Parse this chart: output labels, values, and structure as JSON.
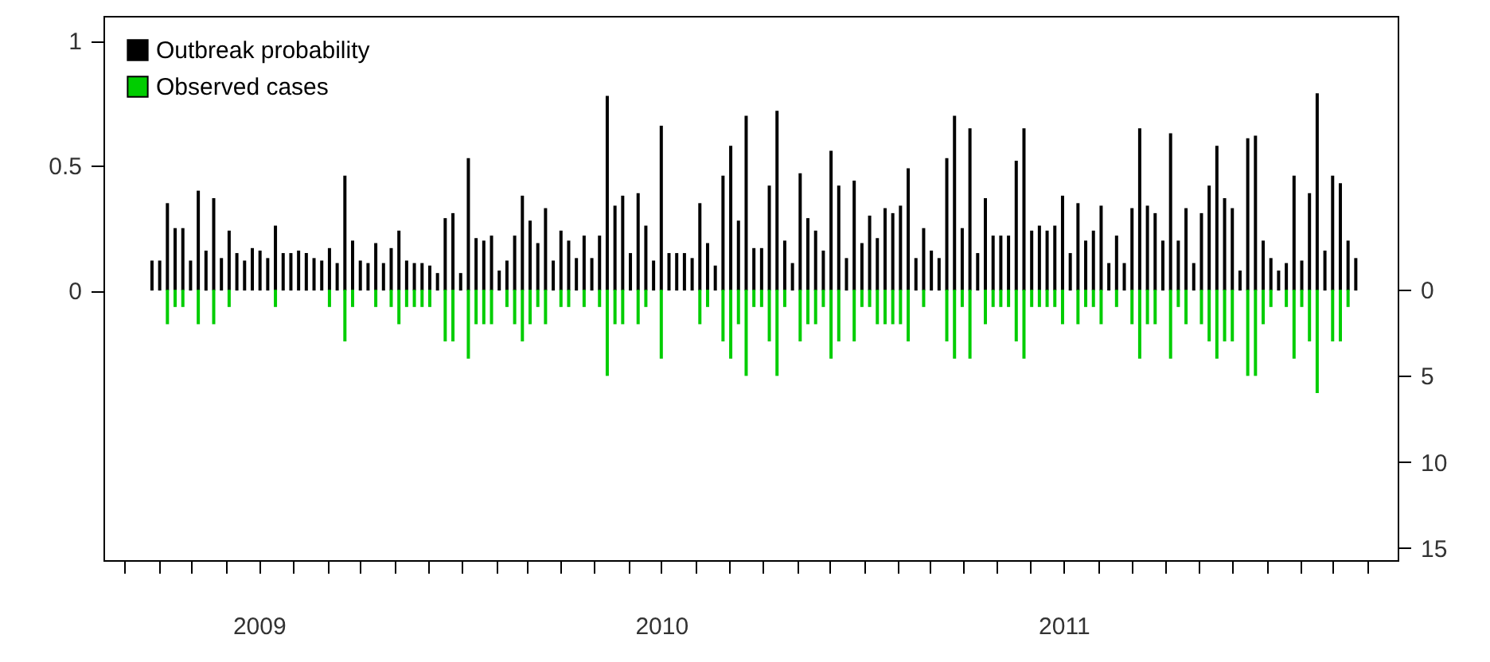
{
  "chart_data": {
    "type": "bar",
    "x": [
      "2009-03-26",
      "2009-04-02",
      "2009-04-09",
      "2009-04-16",
      "2009-04-23",
      "2009-04-30",
      "2009-05-07",
      "2009-05-14",
      "2009-05-21",
      "2009-05-28",
      "2009-06-04",
      "2009-06-11",
      "2009-06-18",
      "2009-06-25",
      "2009-07-02",
      "2009-07-09",
      "2009-07-16",
      "2009-07-23",
      "2009-07-30",
      "2009-08-06",
      "2009-08-13",
      "2009-08-20",
      "2009-08-27",
      "2009-09-03",
      "2009-09-10",
      "2009-09-17",
      "2009-09-24",
      "2009-10-01",
      "2009-10-08",
      "2009-10-15",
      "2009-10-22",
      "2009-10-29",
      "2009-11-05",
      "2009-11-12",
      "2009-11-19",
      "2009-11-26",
      "2009-12-03",
      "2009-12-10",
      "2009-12-17",
      "2009-12-24",
      "2009-12-31",
      "2010-01-07",
      "2010-01-14",
      "2010-01-21",
      "2010-01-28",
      "2010-02-04",
      "2010-02-11",
      "2010-02-18",
      "2010-02-25",
      "2010-03-04",
      "2010-03-11",
      "2010-03-18",
      "2010-03-25",
      "2010-04-01",
      "2010-04-08",
      "2010-04-15",
      "2010-04-22",
      "2010-04-29",
      "2010-05-06",
      "2010-05-13",
      "2010-05-20",
      "2010-05-27",
      "2010-06-03",
      "2010-06-10",
      "2010-06-17",
      "2010-06-24",
      "2010-07-01",
      "2010-07-08",
      "2010-07-15",
      "2010-07-22",
      "2010-07-29",
      "2010-08-05",
      "2010-08-12",
      "2010-08-19",
      "2010-08-26",
      "2010-09-02",
      "2010-09-09",
      "2010-09-16",
      "2010-09-23",
      "2010-09-30",
      "2010-10-07",
      "2010-10-14",
      "2010-10-21",
      "2010-10-28",
      "2010-11-04",
      "2010-11-11",
      "2010-11-18",
      "2010-11-25",
      "2010-12-02",
      "2010-12-09",
      "2010-12-16",
      "2010-12-23",
      "2010-12-30",
      "2011-01-06",
      "2011-01-13",
      "2011-01-20",
      "2011-01-27",
      "2011-02-03",
      "2011-02-10",
      "2011-02-17",
      "2011-02-24",
      "2011-03-03",
      "2011-03-10",
      "2011-03-17",
      "2011-03-24",
      "2011-03-31",
      "2011-04-07",
      "2011-04-14",
      "2011-04-21",
      "2011-04-28",
      "2011-05-05",
      "2011-05-12",
      "2011-05-19",
      "2011-05-26",
      "2011-06-02",
      "2011-06-09",
      "2011-06-16",
      "2011-06-23",
      "2011-06-30",
      "2011-07-07",
      "2011-07-14",
      "2011-07-21",
      "2011-07-28",
      "2011-08-04",
      "2011-08-11",
      "2011-08-18",
      "2011-08-25",
      "2011-09-01",
      "2011-09-08",
      "2011-09-15",
      "2011-09-22",
      "2011-09-29",
      "2011-10-06",
      "2011-10-13",
      "2011-10-20",
      "2011-10-27",
      "2011-11-03",
      "2011-11-10",
      "2011-11-17",
      "2011-11-24",
      "2011-12-01",
      "2011-12-08",
      "2011-12-15",
      "2011-12-22",
      "2011-12-29",
      "2012-01-05",
      "2012-01-12",
      "2012-01-19",
      "2012-01-26",
      "2012-02-02",
      "2012-02-09",
      "2012-02-16",
      "2012-02-23",
      "2012-03-01",
      "2012-03-08",
      "2012-03-15",
      "2012-03-22"
    ],
    "series": [
      {
        "name": "Outbreak probability",
        "color": "#000000",
        "values": [
          0.12,
          0.12,
          0.35,
          0.25,
          0.25,
          0.12,
          0.4,
          0.16,
          0.37,
          0.13,
          0.24,
          0.15,
          0.12,
          0.17,
          0.16,
          0.13,
          0.26,
          0.15,
          0.15,
          0.16,
          0.15,
          0.13,
          0.12,
          0.17,
          0.11,
          0.46,
          0.2,
          0.12,
          0.11,
          0.19,
          0.11,
          0.17,
          0.24,
          0.12,
          0.11,
          0.11,
          0.1,
          0.07,
          0.29,
          0.31,
          0.07,
          0.53,
          0.21,
          0.2,
          0.22,
          0.08,
          0.12,
          0.22,
          0.38,
          0.28,
          0.19,
          0.33,
          0.12,
          0.24,
          0.2,
          0.13,
          0.22,
          0.13,
          0.22,
          0.78,
          0.34,
          0.38,
          0.15,
          0.39,
          0.26,
          0.12,
          0.66,
          0.15,
          0.15,
          0.15,
          0.13,
          0.35,
          0.19,
          0.1,
          0.46,
          0.58,
          0.28,
          0.7,
          0.17,
          0.17,
          0.42,
          0.72,
          0.2,
          0.11,
          0.47,
          0.29,
          0.24,
          0.16,
          0.56,
          0.42,
          0.13,
          0.44,
          0.19,
          0.3,
          0.21,
          0.33,
          0.31,
          0.34,
          0.49,
          0.13,
          0.25,
          0.16,
          0.13,
          0.53,
          0.7,
          0.25,
          0.65,
          0.15,
          0.37,
          0.22,
          0.22,
          0.22,
          0.52,
          0.65,
          0.24,
          0.26,
          0.24,
          0.26,
          0.38,
          0.15,
          0.35,
          0.2,
          0.24,
          0.34,
          0.11,
          0.22,
          0.11,
          0.33,
          0.65,
          0.34,
          0.31,
          0.2,
          0.63,
          0.2,
          0.33,
          0.11,
          0.31,
          0.42,
          0.58,
          0.37,
          0.33,
          0.08,
          0.61,
          0.62,
          0.2,
          0.13,
          0.08,
          0.11,
          0.46,
          0.12,
          0.39,
          0.79,
          0.16,
          0.46,
          0.43,
          0.2,
          0.13
        ]
      },
      {
        "name": "Observed cases",
        "color": "#00cd00",
        "axis": "y2",
        "values": [
          0,
          0,
          2,
          1,
          1,
          0,
          2,
          0,
          2,
          0,
          1,
          0,
          0,
          0,
          0,
          0,
          1,
          0,
          0,
          0,
          0,
          0,
          0,
          1,
          0,
          3,
          1,
          0,
          0,
          1,
          0,
          1,
          2,
          1,
          1,
          1,
          1,
          0,
          3,
          3,
          0,
          4,
          2,
          2,
          2,
          0,
          1,
          2,
          3,
          2,
          1,
          2,
          0,
          1,
          1,
          0,
          1,
          0,
          1,
          5,
          2,
          2,
          0,
          2,
          1,
          0,
          4,
          0,
          0,
          0,
          0,
          2,
          1,
          0,
          3,
          4,
          2,
          5,
          1,
          1,
          3,
          5,
          1,
          0,
          3,
          2,
          2,
          1,
          4,
          3,
          0,
          3,
          1,
          1,
          2,
          2,
          2,
          2,
          3,
          0,
          1,
          0,
          0,
          3,
          4,
          1,
          4,
          0,
          2,
          1,
          1,
          1,
          3,
          4,
          1,
          1,
          1,
          1,
          2,
          0,
          2,
          1,
          1,
          2,
          0,
          1,
          0,
          2,
          4,
          2,
          2,
          0,
          4,
          1,
          2,
          0,
          2,
          3,
          4,
          3,
          3,
          0,
          5,
          5,
          2,
          1,
          0,
          1,
          4,
          1,
          3,
          6,
          0,
          3,
          3,
          1,
          0
        ]
      }
    ],
    "xlim": [
      "2009-02-10",
      "2012-04-29"
    ],
    "xticks": [
      {
        "value": "2009-03-01",
        "label": null
      },
      {
        "value": "2009-04-01",
        "label": null
      },
      {
        "value": "2009-05-01",
        "label": null
      },
      {
        "value": "2009-06-01",
        "label": null
      },
      {
        "value": "2009-07-01",
        "label": "2009"
      },
      {
        "value": "2009-08-01",
        "label": null
      },
      {
        "value": "2009-09-01",
        "label": null
      },
      {
        "value": "2009-10-01",
        "label": null
      },
      {
        "value": "2009-11-01",
        "label": null
      },
      {
        "value": "2009-12-01",
        "label": null
      },
      {
        "value": "2010-01-01",
        "label": null
      },
      {
        "value": "2010-02-01",
        "label": null
      },
      {
        "value": "2010-03-01",
        "label": null
      },
      {
        "value": "2010-04-01",
        "label": null
      },
      {
        "value": "2010-05-01",
        "label": null
      },
      {
        "value": "2010-06-01",
        "label": null
      },
      {
        "value": "2010-07-01",
        "label": "2010"
      },
      {
        "value": "2010-08-01",
        "label": null
      },
      {
        "value": "2010-09-01",
        "label": null
      },
      {
        "value": "2010-10-01",
        "label": null
      },
      {
        "value": "2010-11-01",
        "label": null
      },
      {
        "value": "2010-12-01",
        "label": null
      },
      {
        "value": "2011-01-01",
        "label": null
      },
      {
        "value": "2011-02-01",
        "label": null
      },
      {
        "value": "2011-03-01",
        "label": null
      },
      {
        "value": "2011-04-01",
        "label": null
      },
      {
        "value": "2011-05-01",
        "label": null
      },
      {
        "value": "2011-06-01",
        "label": null
      },
      {
        "value": "2011-07-01",
        "label": "2011"
      },
      {
        "value": "2011-08-01",
        "label": null
      },
      {
        "value": "2011-09-01",
        "label": null
      },
      {
        "value": "2011-10-01",
        "label": null
      },
      {
        "value": "2011-11-01",
        "label": null
      },
      {
        "value": "2011-12-01",
        "label": null
      },
      {
        "value": "2012-01-01",
        "label": null
      },
      {
        "value": "2012-02-01",
        "label": null
      },
      {
        "value": "2012-03-01",
        "label": null
      },
      {
        "value": "2012-04-01",
        "label": null
      }
    ],
    "ylim": [
      -1.08,
      1.1
    ],
    "yticks": [
      0,
      0.5,
      1
    ],
    "y2lim": [
      15.7,
      -15.9
    ],
    "y2ticks": [
      0,
      5,
      10,
      15
    ],
    "legend": "top left",
    "grid": false
  }
}
